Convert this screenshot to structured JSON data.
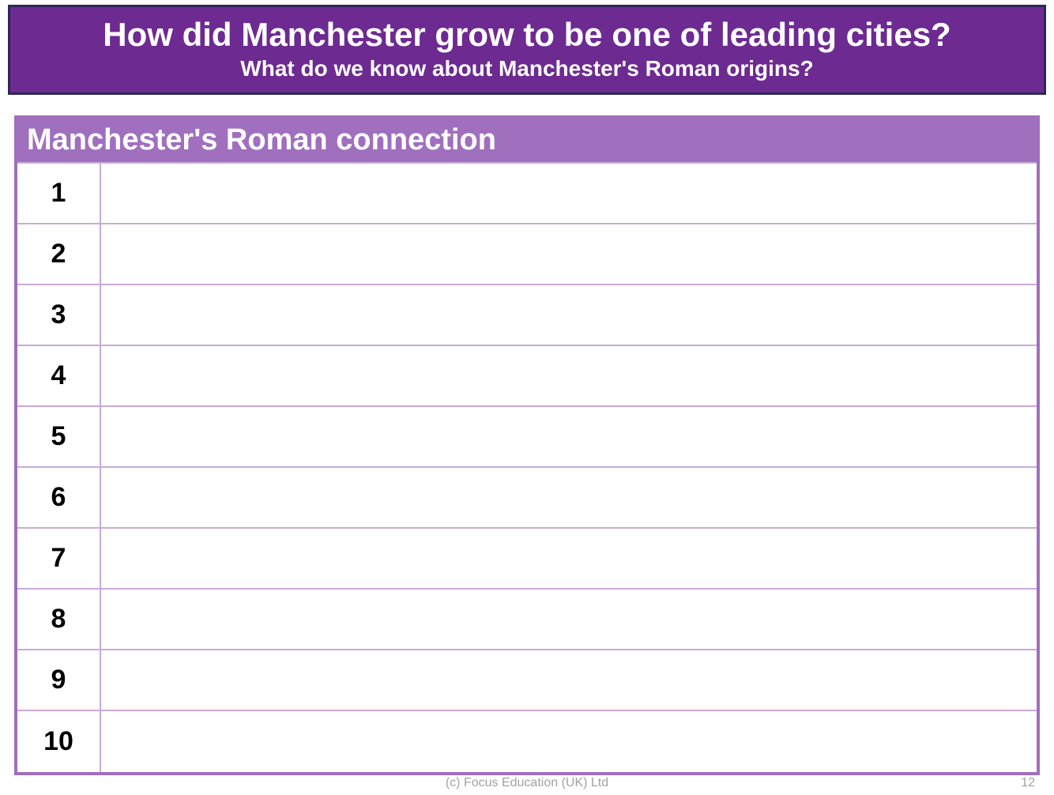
{
  "header": {
    "title": "How did Manchester grow to be one of leading cities?",
    "subtitle": "What do we know about Manchester's Roman origins?"
  },
  "table": {
    "header": "Manchester's Roman connection",
    "rows": [
      {
        "num": "1",
        "content": ""
      },
      {
        "num": "2",
        "content": ""
      },
      {
        "num": "3",
        "content": ""
      },
      {
        "num": "4",
        "content": ""
      },
      {
        "num": "5",
        "content": ""
      },
      {
        "num": "6",
        "content": ""
      },
      {
        "num": "7",
        "content": ""
      },
      {
        "num": "8",
        "content": ""
      },
      {
        "num": "9",
        "content": ""
      },
      {
        "num": "10",
        "content": ""
      }
    ]
  },
  "footer": {
    "copyright": "(c) Focus Education (UK) Ltd",
    "page_number": "12"
  },
  "colors": {
    "header_bg": "#6d2a91",
    "header_border": "#2d2856",
    "table_accent": "#a06fbe",
    "table_border": "#c9abd8",
    "text_white": "#ffffff",
    "text_black": "#000000",
    "footer_gray": "#a2a2a2"
  }
}
